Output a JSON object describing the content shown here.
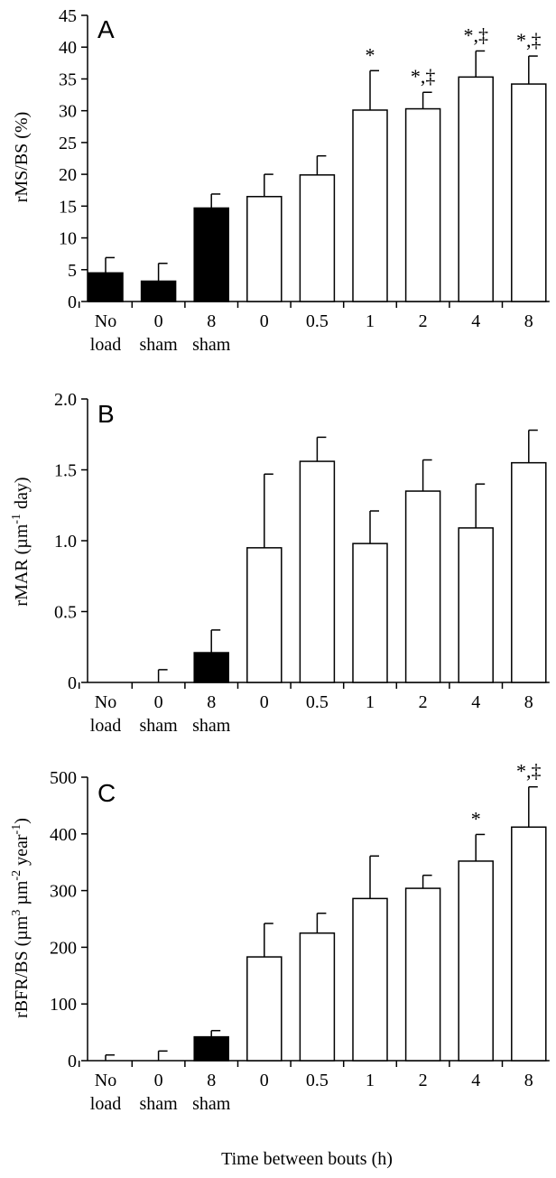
{
  "chart_data": [
    {
      "type": "bar",
      "panel_label": "A",
      "ylabel": "rMS/BS (%)",
      "ylim": [
        0,
        45
      ],
      "yticks": [
        0,
        5,
        10,
        15,
        20,
        25,
        30,
        35,
        40,
        45
      ],
      "categories": [
        "No load",
        "0 sham",
        "8 sham",
        "0",
        "0.5",
        "1",
        "2",
        "4",
        "8"
      ],
      "category_lines": [
        [
          "No",
          "load"
        ],
        [
          "0",
          "sham"
        ],
        [
          "8",
          "sham"
        ],
        [
          "0",
          ""
        ],
        [
          "0.5",
          ""
        ],
        [
          "1",
          ""
        ],
        [
          "2",
          ""
        ],
        [
          "4",
          ""
        ],
        [
          "8",
          ""
        ]
      ],
      "values": [
        4.5,
        3.2,
        14.7,
        16.5,
        19.9,
        30.1,
        30.3,
        35.3,
        34.2
      ],
      "errors": [
        2.4,
        2.8,
        2.2,
        3.5,
        3.0,
        6.2,
        2.6,
        4.1,
        4.4
      ],
      "fills": [
        "black",
        "black",
        "black",
        "white",
        "white",
        "white",
        "white",
        "white",
        "white"
      ],
      "annotations": [
        "",
        "",
        "",
        "",
        "",
        "*",
        "*,‡",
        "*,‡",
        "*,‡"
      ],
      "grid": false,
      "legend": "none"
    },
    {
      "type": "bar",
      "panel_label": "B",
      "ylabel": "rMAR (µm-1 day)",
      "ylabel_parts": {
        "pre": "rMAR (µm",
        "sup": "-1",
        "post": " day)"
      },
      "ylim": [
        0,
        2.0
      ],
      "yticks": [
        "0",
        "0.5",
        "1.0",
        "1.5",
        "2.0"
      ],
      "categories": [
        "No load",
        "0 sham",
        "8 sham",
        "0",
        "0.5",
        "1",
        "2",
        "4",
        "8"
      ],
      "category_lines": [
        [
          "No",
          "load"
        ],
        [
          "0",
          "sham"
        ],
        [
          "8",
          "sham"
        ],
        [
          "0",
          ""
        ],
        [
          "0.5",
          ""
        ],
        [
          "1",
          ""
        ],
        [
          "2",
          ""
        ],
        [
          "4",
          ""
        ],
        [
          "8",
          ""
        ]
      ],
      "values": [
        0,
        0,
        0.21,
        0.95,
        1.56,
        0.98,
        1.35,
        1.09,
        1.55
      ],
      "errors": [
        0,
        0.09,
        0.16,
        0.52,
        0.17,
        0.23,
        0.22,
        0.31,
        0.23
      ],
      "fills": [
        "black",
        "black",
        "black",
        "white",
        "white",
        "white",
        "white",
        "white",
        "white"
      ],
      "annotations": [
        "",
        "",
        "",
        "",
        "",
        "",
        "",
        "",
        ""
      ],
      "grid": false,
      "legend": "none"
    },
    {
      "type": "bar",
      "panel_label": "C",
      "ylabel": "rBFR/BS (µm3 µm-2 year-1)",
      "ylabel_parts": {
        "a": "rBFR/BS (µm",
        "s1": "3",
        "b": " µm",
        "s2": "-2",
        "c": " year",
        "s3": "-1",
        "d": ")"
      },
      "xlabel": "Time between bouts (h)",
      "ylim": [
        0,
        500
      ],
      "yticks": [
        0,
        100,
        200,
        300,
        400,
        500
      ],
      "categories": [
        "No load",
        "0 sham",
        "8 sham",
        "0",
        "0.5",
        "1",
        "2",
        "4",
        "8"
      ],
      "category_lines": [
        [
          "No",
          "load"
        ],
        [
          "0",
          "sham"
        ],
        [
          "8",
          "sham"
        ],
        [
          "0",
          ""
        ],
        [
          "0.5",
          ""
        ],
        [
          "1",
          ""
        ],
        [
          "2",
          ""
        ],
        [
          "4",
          ""
        ],
        [
          "8",
          ""
        ]
      ],
      "values": [
        0,
        0,
        42,
        183,
        225,
        286,
        304,
        352,
        412
      ],
      "errors": [
        10,
        17,
        11,
        59,
        35,
        75,
        23,
        47,
        71
      ],
      "fills": [
        "black",
        "black",
        "black",
        "white",
        "white",
        "white",
        "white",
        "white",
        "white"
      ],
      "annotations": [
        "",
        "",
        "",
        "",
        "",
        "",
        "",
        "*",
        "*,‡"
      ],
      "grid": false,
      "legend": "none"
    }
  ]
}
